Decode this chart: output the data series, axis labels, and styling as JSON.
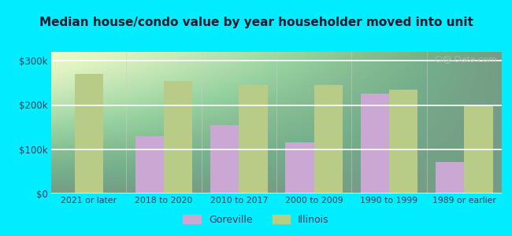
{
  "title": "Median house/condo value by year householder moved into unit",
  "categories": [
    "2021 or later",
    "2018 to 2020",
    "2010 to 2017",
    "2000 to 2009",
    "1990 to 1999",
    "1989 or earlier"
  ],
  "goreville": [
    null,
    130000,
    155000,
    115000,
    225000,
    72000
  ],
  "illinois": [
    270000,
    255000,
    245000,
    245000,
    235000,
    200000
  ],
  "goreville_color": "#c9a8d4",
  "illinois_color": "#b8cc88",
  "outer_bg": "#00eeff",
  "plot_bg": "#e8f5e0",
  "ylabel_ticks": [
    0,
    100000,
    200000,
    300000
  ],
  "ylabel_labels": [
    "$0",
    "$100k",
    "$200k",
    "$300k"
  ],
  "ylim": [
    0,
    320000
  ],
  "bar_width": 0.38,
  "watermark": "City-Data.com",
  "legend_goreville": "Goreville",
  "legend_illinois": "Illinois",
  "title_color": "#1a1a2e",
  "tick_color": "#3a3a5c",
  "grid_color": "#ffffff"
}
